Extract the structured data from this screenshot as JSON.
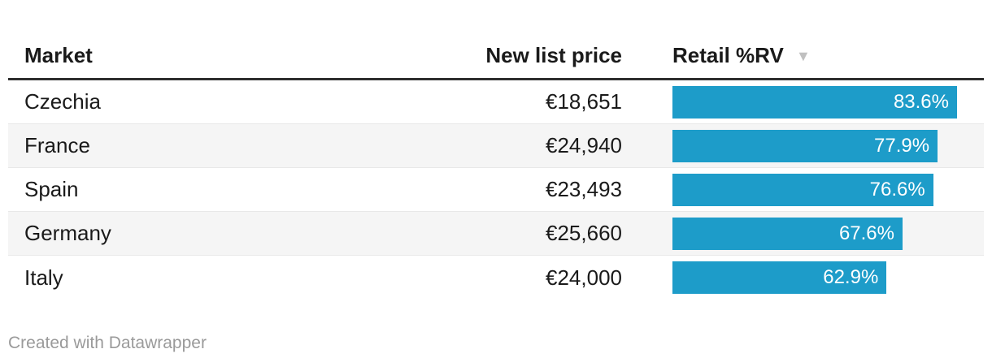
{
  "table": {
    "headers": {
      "market": "Market",
      "price": "New list price",
      "retail": "Retail %RV",
      "sort_indicator": "▼"
    },
    "rows": [
      {
        "market": "Czechia",
        "price": "€18,651",
        "retail_label": "83.6%",
        "retail_value": 83.6
      },
      {
        "market": "France",
        "price": "€24,940",
        "retail_label": "77.9%",
        "retail_value": 77.9
      },
      {
        "market": "Spain",
        "price": "€23,493",
        "retail_label": "76.6%",
        "retail_value": 76.6
      },
      {
        "market": "Germany",
        "price": "€25,660",
        "retail_label": "67.6%",
        "retail_value": 67.6
      },
      {
        "market": "Italy",
        "price": "€24,000",
        "retail_label": "62.9%",
        "retail_value": 62.9
      }
    ]
  },
  "chart_data": {
    "type": "table",
    "title": "",
    "columns": [
      "Market",
      "New list price",
      "Retail %RV"
    ],
    "categories": [
      "Czechia",
      "France",
      "Spain",
      "Germany",
      "Italy"
    ],
    "series": [
      {
        "name": "New list price (EUR)",
        "values": [
          18651,
          24940,
          23493,
          25660,
          24000
        ]
      },
      {
        "name": "Retail %RV",
        "values": [
          83.6,
          77.9,
          76.6,
          67.6,
          62.9
        ]
      }
    ],
    "bar_column": "Retail %RV",
    "bar_scale_max": 83.6,
    "sort": {
      "column": "Retail %RV",
      "direction": "descending"
    },
    "legend": "none",
    "grid": "off"
  },
  "footer": {
    "credit": "Created with Datawrapper"
  },
  "colors": {
    "bar": "#1d9cc9",
    "bar_label": "#ffffff",
    "text": "#1a1a1a",
    "header_border": "#2e2e2e",
    "row_alt_bg": "#f5f5f5",
    "row_border": "#e8e8e8",
    "sort_arrow": "#c0c0c0",
    "credit": "#9a9a9a"
  }
}
